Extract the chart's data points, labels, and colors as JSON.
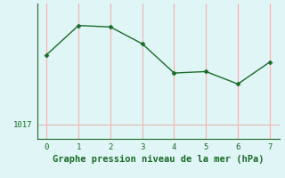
{
  "x": [
    0,
    1,
    2,
    3,
    4,
    5,
    6,
    7
  ],
  "y": [
    1026.5,
    1030.5,
    1030.3,
    1028.0,
    1024.0,
    1024.2,
    1022.5,
    1025.5
  ],
  "line_color": "#1a6b2a",
  "marker": "D",
  "marker_size": 2.5,
  "bg_color": "#e0f5f5",
  "grid_color": "#e8b8b8",
  "xlabel": "Graphe pression niveau de la mer (hPa)",
  "ytick_labels": [
    "1017"
  ],
  "ytick_values": [
    1017
  ],
  "xlim": [
    -0.3,
    7.3
  ],
  "ylim": [
    1015.0,
    1033.5
  ],
  "xlabel_fontsize": 7.5,
  "tick_fontsize": 6.5
}
